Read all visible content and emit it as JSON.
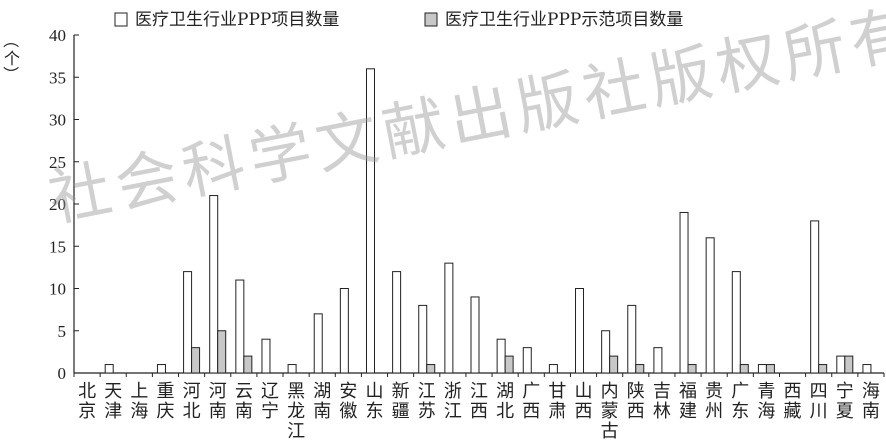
{
  "chart_data": {
    "type": "bar",
    "ylabel": "（个）",
    "ylim": [
      0,
      40
    ],
    "yticks": [
      0,
      5,
      10,
      15,
      20,
      25,
      30,
      35,
      40
    ],
    "categories": [
      "北京",
      "天津",
      "上海",
      "重庆",
      "河北",
      "河南",
      "云南",
      "辽宁",
      "黑龙江",
      "湖南",
      "安徽",
      "山东",
      "新疆",
      "江苏",
      "浙江",
      "江西",
      "湖北",
      "广西",
      "甘肃",
      "山西",
      "内蒙古",
      "陕西",
      "吉林",
      "福建",
      "贵州",
      "广东",
      "青海",
      "西藏",
      "四川",
      "宁夏",
      "海南"
    ],
    "series": [
      {
        "name": "医疗卫生行业PPP项目数量",
        "color": "#ffffff",
        "values": [
          0,
          1,
          0,
          1,
          12,
          21,
          11,
          4,
          1,
          7,
          10,
          36,
          12,
          8,
          13,
          9,
          4,
          3,
          1,
          10,
          5,
          8,
          3,
          19,
          16,
          12,
          1,
          0,
          18,
          2,
          1
        ]
      },
      {
        "name": "医疗卫生行业PPP示范项目数量",
        "color": "#c8c8c8",
        "values": [
          0,
          0,
          0,
          0,
          3,
          5,
          2,
          0,
          0,
          0,
          0,
          0,
          0,
          1,
          0,
          0,
          2,
          0,
          0,
          0,
          2,
          1,
          0,
          1,
          0,
          1,
          1,
          0,
          1,
          2,
          0
        ]
      }
    ],
    "legend": "top",
    "grid": false
  },
  "watermark": "社会科学文献出版社版权所有"
}
